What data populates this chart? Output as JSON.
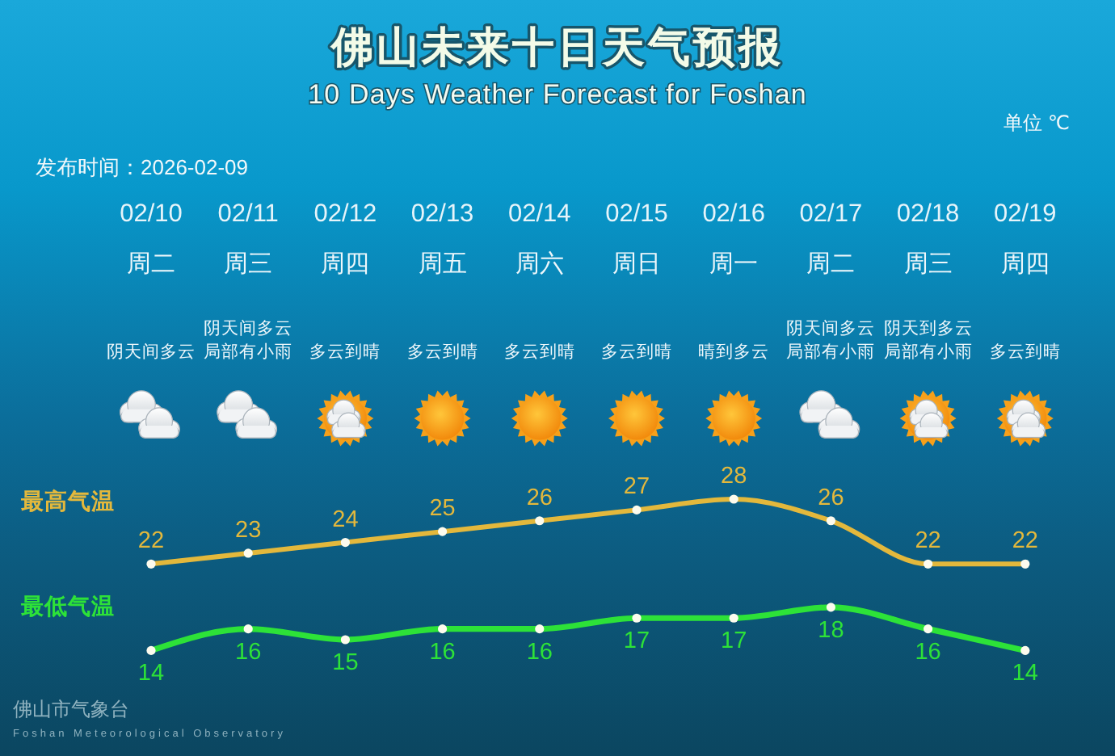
{
  "chart_data": {
    "type": "line",
    "title": "佛山未来十日天气预报",
    "subtitle": "10 Days Weather Forecast for Foshan",
    "categories": [
      "02/10",
      "02/11",
      "02/12",
      "02/13",
      "02/14",
      "02/15",
      "02/16",
      "02/17",
      "02/18",
      "02/19"
    ],
    "series": [
      {
        "name": "最高气温",
        "color": "#e3b83c",
        "values": [
          22,
          23,
          24,
          25,
          26,
          27,
          28,
          26,
          22,
          22
        ]
      },
      {
        "name": "最低气温",
        "color": "#2de238",
        "values": [
          14,
          16,
          15,
          16,
          16,
          17,
          17,
          18,
          16,
          14
        ]
      }
    ],
    "data_labels": true,
    "marker": "circle",
    "line_style": "solid",
    "tick_labels": "x",
    "annotations": [
      "单位 ℃",
      "发布时间：2026-02-09",
      "周二",
      "周三",
      "周四",
      "周五",
      "周六",
      "周日",
      "周一",
      "周二",
      "周三",
      "周四",
      "阴天间多云",
      "阴天间多云局部有小雨",
      "多云到晴",
      "多云到晴",
      "多云到晴",
      "多云到晴",
      "晴到多云",
      "阴天间多云局部有小雨",
      "阴天到多云局部有小雨",
      "多云到晴",
      "佛山市气象台",
      "Foshan Meteorological Observatory"
    ]
  }
}
